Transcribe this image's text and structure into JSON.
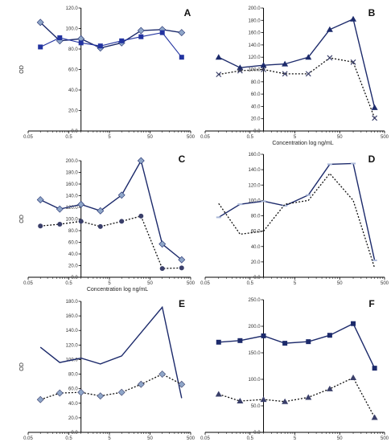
{
  "colors": {
    "solid": "#1c2a6b",
    "solid_alt": "#2233a0",
    "dotted": "#111111",
    "axis": "#000000"
  },
  "chart_data": [
    {
      "type": "line",
      "panel_label": "A",
      "ylabel": "OD",
      "xlabel": "",
      "x_ticks": [
        "0.05",
        "0.5",
        "5",
        "50",
        "500"
      ],
      "y_ticks": [
        "0.0",
        "20.0",
        "40.0",
        "60.0",
        "80.0",
        "100.0",
        "120.0"
      ],
      "ylim": [
        0,
        120
      ],
      "xlim_log": [
        0.05,
        500
      ],
      "x": [
        0.1,
        0.3,
        1,
        3,
        10,
        30,
        100,
        300
      ],
      "series": [
        {
          "style": "solid",
          "marker": "diamond",
          "values": [
            106,
            88,
            90,
            81,
            86,
            98,
            99,
            96
          ]
        },
        {
          "style": "solid-square",
          "marker": "square",
          "values": [
            82,
            91,
            86,
            83,
            88,
            92,
            96,
            72
          ]
        }
      ]
    },
    {
      "type": "line",
      "panel_label": "B",
      "ylabel": "",
      "xlabel": "Concentration log ng/mL",
      "x_ticks": [
        "0.05",
        "0.5",
        "5",
        "50",
        "500"
      ],
      "y_ticks": [
        "0.0",
        "20.0",
        "40.0",
        "60.0",
        "80.0",
        "100.0",
        "120.0",
        "140.0",
        "160.0",
        "180.0",
        "200.0"
      ],
      "ylim": [
        0,
        200
      ],
      "xlim_log": [
        0.05,
        500
      ],
      "x": [
        0.1,
        0.3,
        1,
        3,
        10,
        30,
        100,
        300
      ],
      "series": [
        {
          "style": "solid",
          "marker": "triangle",
          "values": [
            120,
            103,
            107,
            109,
            120,
            165,
            182,
            38
          ]
        },
        {
          "style": "dotted",
          "marker": "cross",
          "values": [
            92,
            98,
            100,
            93,
            93,
            119,
            112,
            21
          ]
        }
      ]
    },
    {
      "type": "line",
      "panel_label": "C",
      "ylabel": "OD",
      "xlabel": "Concentration log ng/mL",
      "x_ticks": [
        "0.05",
        "0.5",
        "5",
        "50",
        "500"
      ],
      "y_ticks": [
        "0.0",
        "20.0",
        "40.0",
        "60.0",
        "80.0",
        "100.0",
        "120.0",
        "140.0",
        "160.0",
        "180.0",
        "200.0"
      ],
      "ylim": [
        0,
        200
      ],
      "xlim_log": [
        0.05,
        500
      ],
      "x": [
        0.1,
        0.3,
        1,
        3,
        10,
        30,
        100,
        300
      ],
      "series": [
        {
          "style": "solid",
          "marker": "diamond",
          "values": [
            133,
            117,
            125,
            114,
            141,
            200,
            57,
            30
          ]
        },
        {
          "style": "dotted",
          "marker": "circle",
          "values": [
            88,
            91,
            96,
            87,
            96,
            105,
            15,
            16
          ]
        }
      ]
    },
    {
      "type": "line",
      "panel_label": "D",
      "ylabel": "",
      "xlabel": "",
      "x_ticks": [
        "0.05",
        "0.5",
        "5",
        "50",
        "500"
      ],
      "y_ticks": [
        "0.0",
        "20.0",
        "40.0",
        "60.0",
        "80.0",
        "100.0",
        "120.0",
        "140.0",
        "160.0"
      ],
      "ylim": [
        0,
        160
      ],
      "xlim_log": [
        0.05,
        500
      ],
      "x": [
        0.1,
        0.3,
        1,
        3,
        10,
        30,
        100,
        300
      ],
      "series": [
        {
          "style": "solid",
          "marker": "dash",
          "values": [
            78,
            95,
            99,
            93,
            107,
            147,
            148,
            22
          ]
        },
        {
          "style": "dotted",
          "marker": "none",
          "values": [
            96,
            56,
            60,
            95,
            100,
            135,
            100,
            12
          ]
        }
      ]
    },
    {
      "type": "line",
      "panel_label": "E",
      "ylabel": "OD",
      "xlabel": "Concentration log ng/mL",
      "x_ticks": [
        "0.05",
        "0.5",
        "5",
        "50",
        "500"
      ],
      "y_ticks": [
        "0.0",
        "20.0",
        "40.0",
        "60.0",
        "80.0",
        "100.0",
        "120.0",
        "140.0",
        "160.0",
        "180.0"
      ],
      "ylim": [
        0,
        180
      ],
      "xlim_log": [
        0.05,
        500
      ],
      "x": [
        0.1,
        0.3,
        1,
        3,
        10,
        30,
        100,
        300
      ],
      "series": [
        {
          "style": "solid",
          "marker": "none",
          "values": [
            117,
            96,
            102,
            94,
            105,
            137,
            172,
            47
          ]
        },
        {
          "style": "dotted",
          "marker": "diamond",
          "values": [
            45,
            54,
            55,
            50,
            55,
            66,
            80,
            66
          ]
        }
      ]
    },
    {
      "type": "line",
      "panel_label": "F",
      "ylabel": "",
      "xlabel": "Concentration log ng/mL",
      "x_ticks": [
        "0.05",
        "0.5",
        "5",
        "50",
        "500"
      ],
      "y_ticks": [
        "0.0",
        "50.0",
        "100.0",
        "150.0",
        "200.0",
        "250.0"
      ],
      "ylim": [
        0,
        250
      ],
      "xlim_log": [
        0.05,
        500
      ],
      "x": [
        0.1,
        0.3,
        1,
        3,
        10,
        30,
        100,
        300
      ],
      "series": [
        {
          "style": "solid",
          "marker": "square",
          "values": [
            170,
            173,
            182,
            168,
            171,
            183,
            205,
            121
          ]
        },
        {
          "style": "dotted",
          "marker": "triangle",
          "values": [
            72,
            59,
            62,
            58,
            66,
            82,
            103,
            28
          ]
        }
      ]
    }
  ]
}
